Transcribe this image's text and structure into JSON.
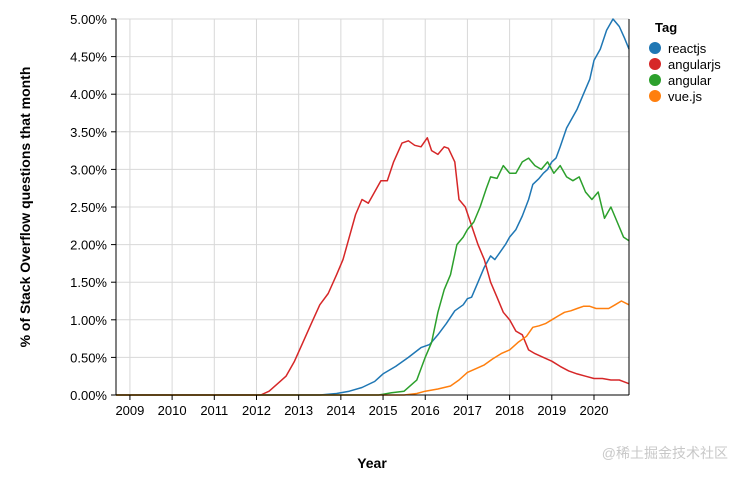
{
  "chart_data": {
    "type": "line",
    "xlabel": "Year",
    "ylabel": "% of Stack Overflow questions that month",
    "xlim": [
      2008.67,
      2020.83
    ],
    "ylim": [
      0,
      5
    ],
    "x_ticks": [
      "2009",
      "2010",
      "2011",
      "2012",
      "2013",
      "2014",
      "2015",
      "2016",
      "2017",
      "2018",
      "2019",
      "2020"
    ],
    "y_ticks": [
      "0.00%",
      "0.50%",
      "1.00%",
      "1.50%",
      "2.00%",
      "2.50%",
      "3.00%",
      "3.50%",
      "4.00%",
      "4.50%",
      "5.00%"
    ],
    "grid": true,
    "legend": {
      "title": "Tag",
      "placement": "right"
    },
    "series": [
      {
        "name": "reactjs",
        "color": "#1f77b4",
        "points": [
          [
            2008.67,
            0
          ],
          [
            2013.5,
            0
          ],
          [
            2013.9,
            0.02
          ],
          [
            2014.2,
            0.05
          ],
          [
            2014.5,
            0.1
          ],
          [
            2014.8,
            0.18
          ],
          [
            2015.0,
            0.28
          ],
          [
            2015.3,
            0.38
          ],
          [
            2015.6,
            0.5
          ],
          [
            2015.9,
            0.63
          ],
          [
            2016.1,
            0.67
          ],
          [
            2016.3,
            0.8
          ],
          [
            2016.5,
            0.95
          ],
          [
            2016.7,
            1.12
          ],
          [
            2016.9,
            1.2
          ],
          [
            2017.0,
            1.28
          ],
          [
            2017.1,
            1.3
          ],
          [
            2017.25,
            1.5
          ],
          [
            2017.4,
            1.7
          ],
          [
            2017.55,
            1.85
          ],
          [
            2017.65,
            1.8
          ],
          [
            2017.75,
            1.88
          ],
          [
            2017.9,
            2.0
          ],
          [
            2018.0,
            2.1
          ],
          [
            2018.15,
            2.2
          ],
          [
            2018.3,
            2.38
          ],
          [
            2018.45,
            2.6
          ],
          [
            2018.55,
            2.8
          ],
          [
            2018.7,
            2.88
          ],
          [
            2018.8,
            2.95
          ],
          [
            2018.9,
            3.0
          ],
          [
            2019.0,
            3.1
          ],
          [
            2019.1,
            3.15
          ],
          [
            2019.2,
            3.3
          ],
          [
            2019.35,
            3.55
          ],
          [
            2019.5,
            3.7
          ],
          [
            2019.6,
            3.8
          ],
          [
            2019.75,
            4.0
          ],
          [
            2019.9,
            4.2
          ],
          [
            2020.0,
            4.45
          ],
          [
            2020.15,
            4.6
          ],
          [
            2020.3,
            4.85
          ],
          [
            2020.45,
            5.0
          ],
          [
            2020.6,
            4.9
          ],
          [
            2020.72,
            4.75
          ],
          [
            2020.83,
            4.6
          ]
        ]
      },
      {
        "name": "angularjs",
        "color": "#d62728",
        "points": [
          [
            2008.67,
            0
          ],
          [
            2012.1,
            0
          ],
          [
            2012.3,
            0.05
          ],
          [
            2012.5,
            0.15
          ],
          [
            2012.7,
            0.25
          ],
          [
            2012.9,
            0.45
          ],
          [
            2013.1,
            0.7
          ],
          [
            2013.3,
            0.95
          ],
          [
            2013.5,
            1.2
          ],
          [
            2013.7,
            1.35
          ],
          [
            2013.9,
            1.6
          ],
          [
            2014.05,
            1.8
          ],
          [
            2014.2,
            2.1
          ],
          [
            2014.35,
            2.4
          ],
          [
            2014.5,
            2.6
          ],
          [
            2014.65,
            2.55
          ],
          [
            2014.8,
            2.7
          ],
          [
            2014.95,
            2.85
          ],
          [
            2015.1,
            2.85
          ],
          [
            2015.25,
            3.1
          ],
          [
            2015.45,
            3.35
          ],
          [
            2015.6,
            3.38
          ],
          [
            2015.75,
            3.32
          ],
          [
            2015.9,
            3.3
          ],
          [
            2016.05,
            3.42
          ],
          [
            2016.15,
            3.25
          ],
          [
            2016.3,
            3.2
          ],
          [
            2016.45,
            3.3
          ],
          [
            2016.55,
            3.28
          ],
          [
            2016.7,
            3.1
          ],
          [
            2016.8,
            2.6
          ],
          [
            2016.95,
            2.5
          ],
          [
            2017.1,
            2.25
          ],
          [
            2017.25,
            2.0
          ],
          [
            2017.4,
            1.8
          ],
          [
            2017.55,
            1.5
          ],
          [
            2017.7,
            1.3
          ],
          [
            2017.85,
            1.1
          ],
          [
            2018.0,
            1.0
          ],
          [
            2018.15,
            0.85
          ],
          [
            2018.3,
            0.8
          ],
          [
            2018.45,
            0.6
          ],
          [
            2018.6,
            0.55
          ],
          [
            2018.8,
            0.5
          ],
          [
            2019.0,
            0.45
          ],
          [
            2019.2,
            0.38
          ],
          [
            2019.4,
            0.32
          ],
          [
            2019.6,
            0.28
          ],
          [
            2019.8,
            0.25
          ],
          [
            2020.0,
            0.22
          ],
          [
            2020.2,
            0.22
          ],
          [
            2020.4,
            0.2
          ],
          [
            2020.6,
            0.2
          ],
          [
            2020.83,
            0.15
          ]
        ]
      },
      {
        "name": "angular",
        "color": "#2ca02c",
        "points": [
          [
            2008.67,
            0
          ],
          [
            2014.9,
            0
          ],
          [
            2015.2,
            0.03
          ],
          [
            2015.5,
            0.05
          ],
          [
            2015.8,
            0.2
          ],
          [
            2016.0,
            0.5
          ],
          [
            2016.15,
            0.7
          ],
          [
            2016.3,
            1.1
          ],
          [
            2016.45,
            1.4
          ],
          [
            2016.6,
            1.6
          ],
          [
            2016.75,
            2.0
          ],
          [
            2016.9,
            2.1
          ],
          [
            2017.0,
            2.2
          ],
          [
            2017.15,
            2.3
          ],
          [
            2017.3,
            2.5
          ],
          [
            2017.45,
            2.75
          ],
          [
            2017.55,
            2.9
          ],
          [
            2017.7,
            2.88
          ],
          [
            2017.85,
            3.05
          ],
          [
            2018.0,
            2.95
          ],
          [
            2018.15,
            2.95
          ],
          [
            2018.3,
            3.1
          ],
          [
            2018.45,
            3.15
          ],
          [
            2018.6,
            3.05
          ],
          [
            2018.75,
            3.0
          ],
          [
            2018.9,
            3.1
          ],
          [
            2019.05,
            2.95
          ],
          [
            2019.2,
            3.05
          ],
          [
            2019.35,
            2.9
          ],
          [
            2019.5,
            2.85
          ],
          [
            2019.65,
            2.9
          ],
          [
            2019.8,
            2.7
          ],
          [
            2019.95,
            2.6
          ],
          [
            2020.1,
            2.7
          ],
          [
            2020.25,
            2.35
          ],
          [
            2020.4,
            2.5
          ],
          [
            2020.55,
            2.3
          ],
          [
            2020.7,
            2.1
          ],
          [
            2020.83,
            2.05
          ]
        ]
      },
      {
        "name": "vue.js",
        "color": "#ff7f0e",
        "points": [
          [
            2008.67,
            0
          ],
          [
            2015.5,
            0
          ],
          [
            2015.8,
            0.02
          ],
          [
            2016.0,
            0.05
          ],
          [
            2016.3,
            0.08
          ],
          [
            2016.6,
            0.12
          ],
          [
            2016.8,
            0.2
          ],
          [
            2017.0,
            0.3
          ],
          [
            2017.2,
            0.35
          ],
          [
            2017.4,
            0.4
          ],
          [
            2017.6,
            0.48
          ],
          [
            2017.8,
            0.55
          ],
          [
            2018.0,
            0.6
          ],
          [
            2018.2,
            0.7
          ],
          [
            2018.4,
            0.78
          ],
          [
            2018.55,
            0.9
          ],
          [
            2018.7,
            0.92
          ],
          [
            2018.85,
            0.95
          ],
          [
            2019.0,
            1.0
          ],
          [
            2019.15,
            1.05
          ],
          [
            2019.3,
            1.1
          ],
          [
            2019.45,
            1.12
          ],
          [
            2019.6,
            1.15
          ],
          [
            2019.75,
            1.18
          ],
          [
            2019.9,
            1.18
          ],
          [
            2020.05,
            1.15
          ],
          [
            2020.2,
            1.15
          ],
          [
            2020.35,
            1.15
          ],
          [
            2020.5,
            1.2
          ],
          [
            2020.65,
            1.25
          ],
          [
            2020.83,
            1.2
          ]
        ]
      }
    ]
  },
  "watermark": "@稀土掘金技术社区"
}
